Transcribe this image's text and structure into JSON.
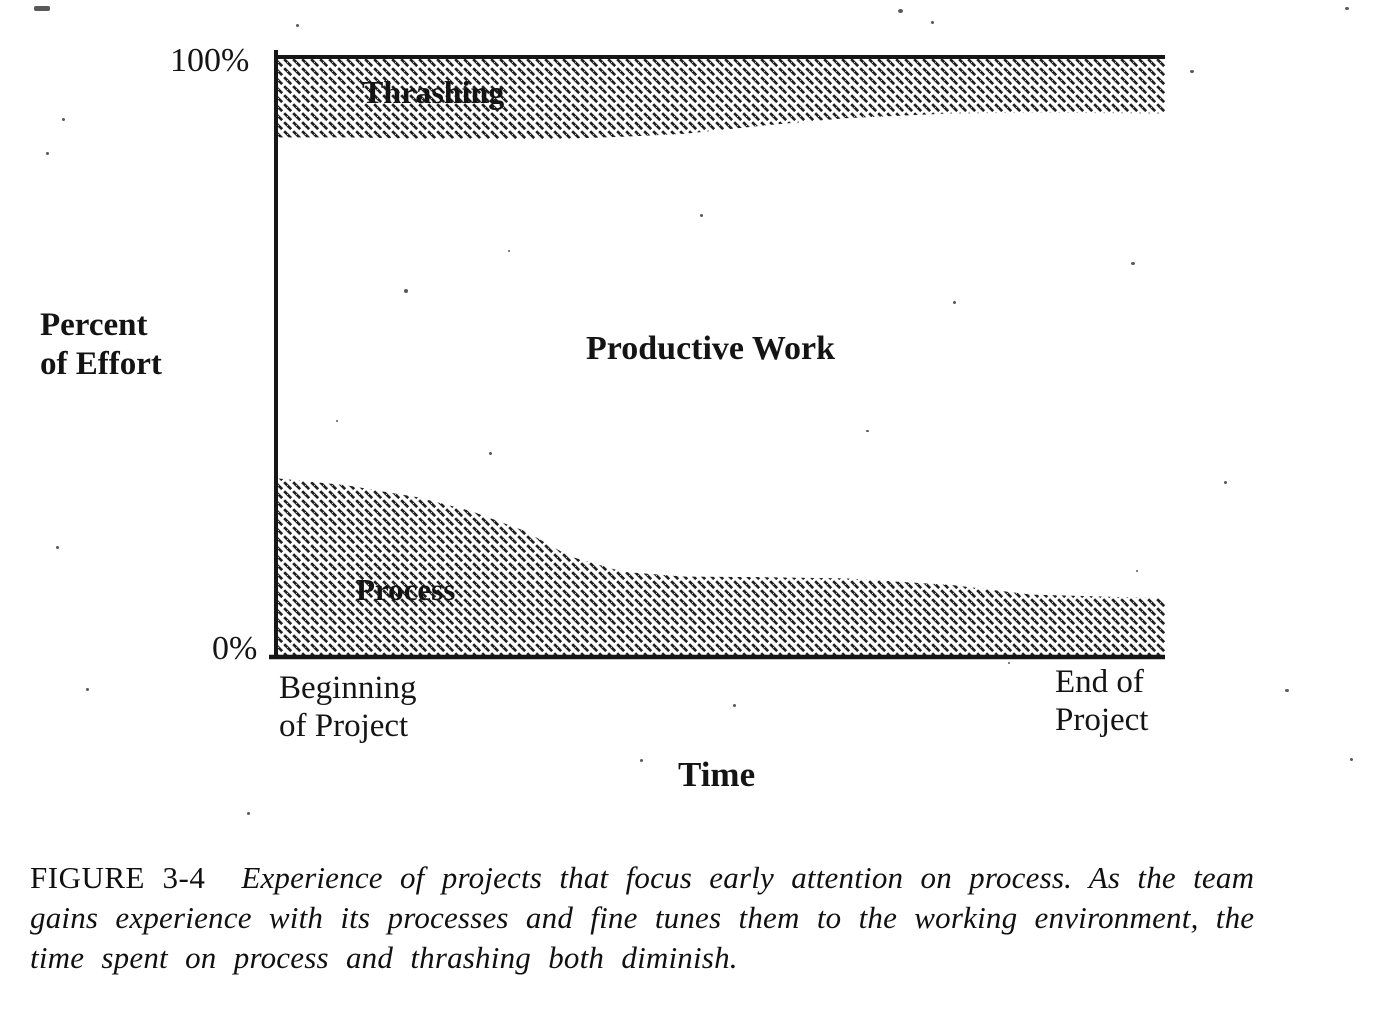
{
  "figure": {
    "y_axis": {
      "tick_top": "100%",
      "tick_bottom": "0%",
      "title_line1": "Percent",
      "title_line2": "of Effort"
    },
    "x_axis": {
      "title": "Time",
      "start_line1": "Beginning",
      "start_line2": "of Project",
      "end_line1": "End of",
      "end_line2": "Project"
    },
    "bands": {
      "thrashing_label": "Thrashing",
      "productive_label": "Productive Work",
      "process_label": "Process"
    }
  },
  "caption": {
    "label": "FIGURE 3-4",
    "line1": "Experience of projects that focus early attention on process. As the team",
    "line2": "gains experience with its processes and fine tunes them to the working environment, the",
    "line3": "time spent on process and thrashing both diminish."
  },
  "chart_data": {
    "type": "area",
    "title": "",
    "xlabel": "Time",
    "ylabel": "Percent of Effort",
    "y_ticks": [
      "0%",
      "100%"
    ],
    "ylim": [
      0,
      100
    ],
    "x_axis_labels": [
      "Beginning of Project",
      "End of Project"
    ],
    "x": [
      0,
      0.08,
      0.16,
      0.22,
      0.28,
      0.33,
      0.39,
      0.46,
      0.55,
      0.64,
      0.76,
      0.85,
      1.0
    ],
    "series": [
      {
        "name": "Process",
        "role": "hatched band from 0% up to these values (% of effort)",
        "values": [
          29.8,
          28.6,
          26.6,
          24.3,
          21.0,
          16.8,
          14.2,
          13.4,
          13.3,
          13.1,
          12.0,
          10.4,
          9.8
        ]
      },
      {
        "name": "Thrashing",
        "role": "hatched band from these values up to 100% (% of effort)",
        "values": [
          86.6,
          86.6,
          86.4,
          86.4,
          86.3,
          86.4,
          86.7,
          87.2,
          88.6,
          89.8,
          90.6,
          90.7,
          90.6
        ]
      },
      {
        "name": "Productive Work",
        "role": "unshaded band between Process top and Thrashing bottom"
      }
    ],
    "style": {
      "fill": "diagonal-hatch",
      "legend": "labels drawn inside bands",
      "grid": false
    }
  }
}
